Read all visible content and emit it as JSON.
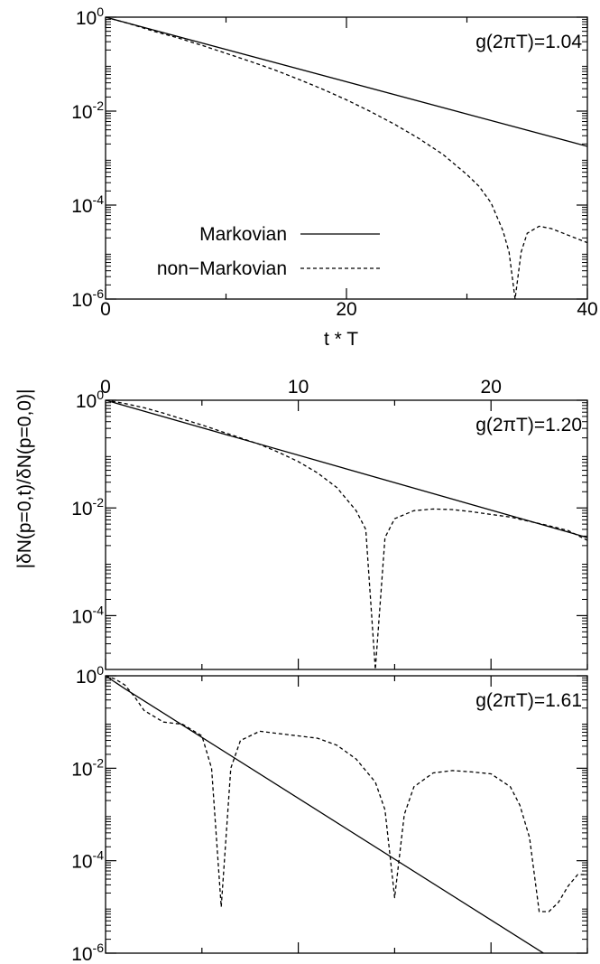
{
  "ylabel": "|δN(p=0,t)/δN(p=0,0)|",
  "chart_data": [
    {
      "type": "line",
      "annotation": "g(2πT)=1.04",
      "xlabel": "t * T",
      "xlim": [
        0,
        40
      ],
      "ylim_log10": [
        -6,
        0
      ],
      "log_y": true,
      "x_ticks": [
        0,
        20,
        40
      ],
      "x_tick_labels_position": "bottom",
      "y_ticks": [
        {
          "base": "10",
          "exp": "-6"
        },
        {
          "base": "10",
          "exp": "-4"
        },
        {
          "base": "10",
          "exp": "-2"
        },
        {
          "base": "10",
          "exp": "0"
        }
      ],
      "legend": {
        "placement": "lower-left",
        "entries": [
          "Markovian",
          "non−Markovian"
        ]
      },
      "series": [
        {
          "name": "Markovian",
          "style": "solid",
          "x": [
            0,
            40
          ],
          "log10_y": [
            0,
            -2.75
          ]
        },
        {
          "name": "non−Markovian",
          "style": "dashed",
          "x": [
            0,
            2,
            4,
            6,
            8,
            10,
            12,
            14,
            16,
            18,
            20,
            22,
            24,
            26,
            28,
            30,
            31,
            32,
            33,
            33.5,
            34,
            34.5,
            35,
            36,
            37,
            38,
            39,
            40
          ],
          "log10_y": [
            0,
            -0.14,
            -0.3,
            -0.44,
            -0.6,
            -0.77,
            -0.94,
            -1.12,
            -1.32,
            -1.53,
            -1.76,
            -2.01,
            -2.28,
            -2.58,
            -2.92,
            -3.35,
            -3.6,
            -3.95,
            -4.55,
            -5.0,
            -6.0,
            -5.0,
            -4.6,
            -4.45,
            -4.5,
            -4.6,
            -4.7,
            -4.8
          ]
        }
      ]
    },
    {
      "type": "line",
      "annotation": "g(2πT)=1.20",
      "xlim": [
        0,
        25
      ],
      "ylim_log10": [
        -5,
        0
      ],
      "log_y": true,
      "x_ticks": [
        0,
        10,
        20
      ],
      "x_tick_labels_position": "top",
      "y_ticks": [
        {
          "base": "10",
          "exp": "-4"
        },
        {
          "base": "10",
          "exp": "-2"
        },
        {
          "base": "10",
          "exp": "0"
        }
      ],
      "series": [
        {
          "name": "Markovian",
          "style": "solid",
          "x": [
            0,
            25
          ],
          "log10_y": [
            0,
            -2.55
          ]
        },
        {
          "name": "non−Markovian",
          "style": "dashed",
          "x": [
            0,
            1,
            2,
            3,
            4,
            5,
            6,
            7,
            8,
            9,
            10,
            11,
            12,
            13,
            13.5,
            14,
            14.5,
            15,
            16,
            17,
            18,
            19,
            20,
            21,
            22,
            23,
            24,
            25
          ],
          "log10_y": [
            0,
            -0.06,
            -0.14,
            -0.24,
            -0.35,
            -0.46,
            -0.58,
            -0.7,
            -0.82,
            -0.97,
            -1.14,
            -1.35,
            -1.62,
            -2.05,
            -2.4,
            -5.0,
            -2.55,
            -2.2,
            -2.05,
            -2.02,
            -2.03,
            -2.07,
            -2.12,
            -2.17,
            -2.25,
            -2.33,
            -2.42,
            -2.6
          ]
        }
      ]
    },
    {
      "type": "line",
      "annotation": "g(2πT)=1.61",
      "xlim": [
        0,
        25
      ],
      "ylim_log10": [
        -6,
        0
      ],
      "log_y": true,
      "x_ticks": [
        0,
        10,
        20
      ],
      "y_ticks": [
        {
          "base": "10",
          "exp": "-6"
        },
        {
          "base": "10",
          "exp": "-4"
        },
        {
          "base": "10",
          "exp": "-2"
        },
        {
          "base": "10",
          "exp": "0"
        }
      ],
      "series": [
        {
          "name": "Markovian",
          "style": "solid",
          "x": [
            0,
            1,
            25
          ],
          "log10_y": [
            0,
            -0.28,
            -6.6
          ]
        },
        {
          "name": "non−Markovian",
          "style": "dashed",
          "x": [
            0,
            0.5,
            1,
            1.5,
            2,
            3,
            4,
            5,
            5.5,
            6,
            6.5,
            7,
            8,
            9,
            10,
            11,
            12,
            13,
            14,
            14.5,
            15,
            15.5,
            16,
            17,
            18,
            19,
            20,
            21,
            21.5,
            22,
            22.5,
            23,
            23.5,
            24,
            24.5,
            25
          ],
          "log10_y": [
            0,
            -0.07,
            -0.2,
            -0.45,
            -0.75,
            -1.0,
            -1.05,
            -1.3,
            -2.0,
            -5.0,
            -2.0,
            -1.4,
            -1.2,
            -1.25,
            -1.3,
            -1.35,
            -1.5,
            -1.8,
            -2.3,
            -2.9,
            -4.8,
            -3.0,
            -2.4,
            -2.1,
            -2.05,
            -2.08,
            -2.12,
            -2.4,
            -2.8,
            -3.5,
            -5.1,
            -5.1,
            -4.9,
            -4.55,
            -4.3,
            -4.3
          ]
        }
      ]
    }
  ]
}
